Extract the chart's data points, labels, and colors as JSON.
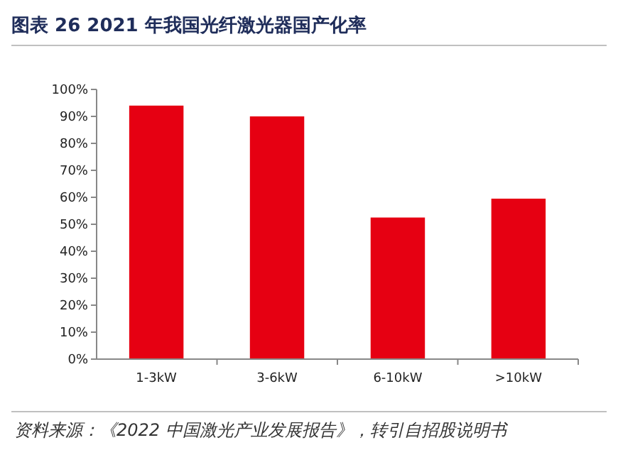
{
  "chart_data": {
    "type": "bar",
    "title": "图表 26   2021 年我国光纤激光器国产化率",
    "categories": [
      "1-3kW",
      "3-6kW",
      "6-10kW",
      ">10kW"
    ],
    "values": [
      94,
      90,
      52.5,
      59.5
    ],
    "color": "#e60012",
    "ylim": [
      0,
      100
    ],
    "yticks": [
      {
        "value": 0,
        "label": "0%"
      },
      {
        "value": 10,
        "label": "10%"
      },
      {
        "value": 20,
        "label": "20%"
      },
      {
        "value": 30,
        "label": "30%"
      },
      {
        "value": 40,
        "label": "40%"
      },
      {
        "value": 50,
        "label": "50%"
      },
      {
        "value": 60,
        "label": "60%"
      },
      {
        "value": 70,
        "label": "70%"
      },
      {
        "value": 80,
        "label": "80%"
      },
      {
        "value": 90,
        "label": "90%"
      },
      {
        "value": 100,
        "label": "100%"
      }
    ],
    "grid": false,
    "annotations": [
      "资料来源：《2022 中国激光产业发展报告》，转引自招股说明书"
    ]
  }
}
